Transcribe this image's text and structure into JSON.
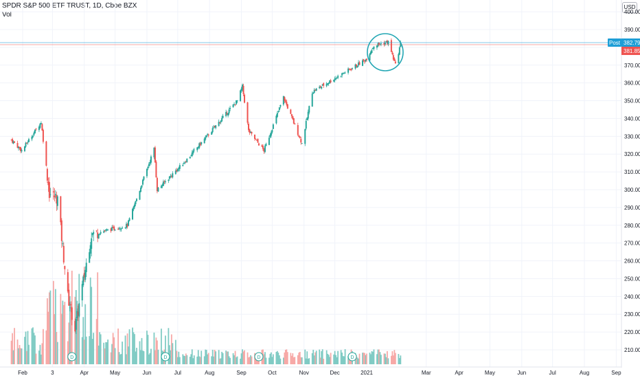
{
  "header": {
    "symbol": "SPDR S&P 500 ETF TRUST, 1D, Cboe BZX",
    "volume_label": "Vol"
  },
  "currency_button": "USD",
  "price_labels": {
    "post_label": "Post",
    "post_value": "382.79",
    "last_value": "381.85"
  },
  "colors": {
    "up": "#26a69a",
    "down": "#ef5350",
    "up_volume": "#80cbc4",
    "down_volume": "#f7a9a7",
    "post": "#1e9ed6",
    "annotation": "#22a6b3",
    "grid": "#f0f3fa"
  },
  "chart_data": {
    "type": "candlestick",
    "ylim": [
      205,
      400
    ],
    "y_ticks": [
      "210.00",
      "220.00",
      "230.00",
      "240.00",
      "250.00",
      "260.00",
      "270.00",
      "280.00",
      "290.00",
      "300.00",
      "310.00",
      "320.00",
      "330.00",
      "340.00",
      "350.00",
      "360.00",
      "370.00",
      "380.00",
      "390.00",
      "400.00"
    ],
    "x_ticks": [
      "Feb",
      "3",
      "Apr",
      "May",
      "Jun",
      "Jul",
      "Aug",
      "Sep",
      "Oct",
      "Nov",
      "Dec",
      "2021",
      "Mar",
      "Apr",
      "May",
      "Jun",
      "Jul",
      "Aug",
      "Sep"
    ],
    "dividend_marker": "D",
    "close_anchors": [
      {
        "date": "2020-01-21",
        "close": 328
      },
      {
        "date": "2020-01-31",
        "close": 322
      },
      {
        "date": "2020-02-19",
        "close": 338
      },
      {
        "date": "2020-02-27",
        "close": 298
      },
      {
        "date": "2020-03-06",
        "close": 295
      },
      {
        "date": "2020-03-16",
        "close": 240
      },
      {
        "date": "2020-03-23",
        "close": 222
      },
      {
        "date": "2020-04-08",
        "close": 275
      },
      {
        "date": "2020-05-13",
        "close": 280
      },
      {
        "date": "2020-06-08",
        "close": 323
      },
      {
        "date": "2020-06-11",
        "close": 300
      },
      {
        "date": "2020-07-10",
        "close": 317
      },
      {
        "date": "2020-08-28",
        "close": 350
      },
      {
        "date": "2020-09-02",
        "close": 358
      },
      {
        "date": "2020-09-08",
        "close": 333
      },
      {
        "date": "2020-09-23",
        "close": 322
      },
      {
        "date": "2020-10-12",
        "close": 352
      },
      {
        "date": "2020-10-30",
        "close": 326
      },
      {
        "date": "2020-11-09",
        "close": 355
      },
      {
        "date": "2020-12-31",
        "close": 373
      },
      {
        "date": "2021-01-08",
        "close": 381
      },
      {
        "date": "2021-01-22",
        "close": 383
      },
      {
        "date": "2021-01-29",
        "close": 370
      },
      {
        "date": "2021-02-03",
        "close": 382
      }
    ]
  }
}
